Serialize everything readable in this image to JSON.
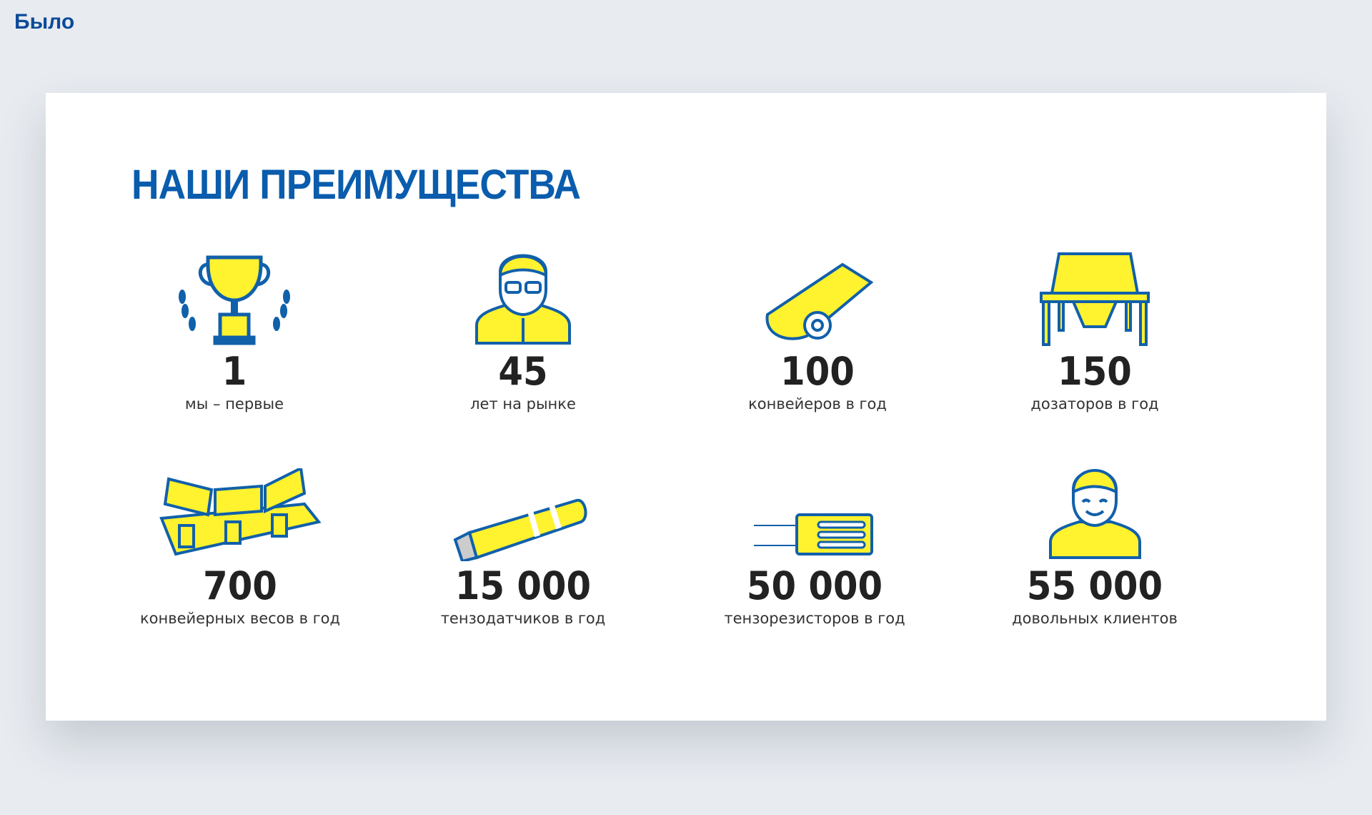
{
  "page_label": "Было",
  "section": {
    "title": "НАШИ ПРЕИМУЩЕСТВА",
    "items": [
      {
        "value": "1",
        "label": "мы – первые",
        "icon": "trophy-icon"
      },
      {
        "value": "45",
        "label": "лет на рынке",
        "icon": "engineer-icon"
      },
      {
        "value": "100",
        "label": "конвейеров в год",
        "icon": "conveyor-icon"
      },
      {
        "value": "150",
        "label": "дозаторов в год",
        "icon": "dispenser-icon"
      },
      {
        "value": "700",
        "label": "конвейерных весов в год",
        "icon": "conveyor-scale-icon"
      },
      {
        "value": "15 000",
        "label": "тензодатчиков в год",
        "icon": "load-cell-icon"
      },
      {
        "value": "50 000",
        "label": "тензорезисторов в год",
        "icon": "strain-gauge-icon"
      },
      {
        "value": "55 000",
        "label": "довольных клиентов",
        "icon": "happy-client-icon"
      }
    ]
  },
  "colors": {
    "brand_blue": "#0a5cad",
    "accent_yellow": "#fff22e",
    "icon_blue": "#1160aa"
  }
}
